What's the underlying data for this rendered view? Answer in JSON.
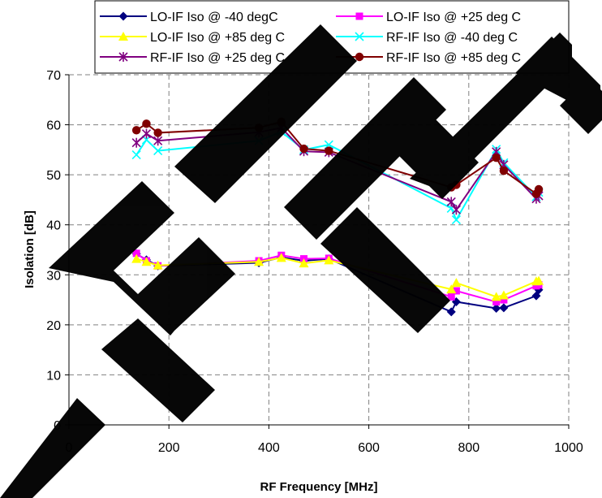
{
  "chart_data": {
    "type": "line",
    "title": "",
    "xlabel": "RF Frequency [MHz]",
    "ylabel": "Isolation [dB]",
    "xlim": [
      0,
      1000
    ],
    "ylim": [
      0,
      70
    ],
    "xticks": [
      0,
      200,
      400,
      600,
      800,
      1000
    ],
    "yticks": [
      0,
      10,
      20,
      30,
      40,
      50,
      60,
      70
    ],
    "grid": true,
    "legend_position": "top",
    "watermark": "DELETE",
    "series": [
      {
        "name": "LO-IF Iso @ -40 degC",
        "color": "#000080",
        "marker": "diamond",
        "points": [
          [
            135,
            34.2
          ],
          [
            155,
            33.0
          ],
          [
            178,
            31.8
          ],
          [
            380,
            32.4
          ],
          [
            425,
            33.5
          ],
          [
            470,
            32.8
          ],
          [
            520,
            33.2
          ],
          [
            765,
            22.6
          ],
          [
            775,
            24.6
          ],
          [
            855,
            23.3
          ],
          [
            870,
            23.4
          ],
          [
            935,
            25.8
          ],
          [
            940,
            27.0
          ]
        ]
      },
      {
        "name": "LO-IF Iso @ +25 deg C",
        "color": "#ff00ff",
        "marker": "square",
        "points": [
          [
            135,
            34.3
          ],
          [
            155,
            32.8
          ],
          [
            178,
            31.8
          ],
          [
            380,
            32.8
          ],
          [
            425,
            33.9
          ],
          [
            470,
            33.2
          ],
          [
            520,
            33.3
          ],
          [
            765,
            25.6
          ],
          [
            775,
            26.8
          ],
          [
            855,
            24.6
          ],
          [
            870,
            25.0
          ],
          [
            935,
            27.8
          ],
          [
            940,
            28.0
          ]
        ]
      },
      {
        "name": "LO-IF Iso @ +85 deg C",
        "color": "#ffff00",
        "marker": "triangle",
        "points": [
          [
            135,
            33.2
          ],
          [
            155,
            32.6
          ],
          [
            178,
            31.9
          ],
          [
            380,
            32.6
          ],
          [
            425,
            33.4
          ],
          [
            470,
            32.3
          ],
          [
            520,
            32.9
          ],
          [
            765,
            27.1
          ],
          [
            775,
            28.4
          ],
          [
            855,
            25.6
          ],
          [
            870,
            25.9
          ],
          [
            935,
            28.7
          ],
          [
            940,
            28.8
          ]
        ]
      },
      {
        "name": "RF-IF Iso @ -40 deg C",
        "color": "#00ffff",
        "marker": "x",
        "points": [
          [
            135,
            54.0
          ],
          [
            155,
            57.0
          ],
          [
            178,
            54.8
          ],
          [
            380,
            56.8
          ],
          [
            425,
            58.6
          ],
          [
            470,
            55.0
          ],
          [
            520,
            56.0
          ],
          [
            765,
            43.3
          ],
          [
            775,
            41.0
          ],
          [
            855,
            55.1
          ],
          [
            870,
            52.4
          ],
          [
            935,
            45.6
          ],
          [
            940,
            46.5
          ]
        ]
      },
      {
        "name": "RF-IF Iso @ +25 deg C",
        "color": "#800080",
        "marker": "star",
        "points": [
          [
            135,
            56.4
          ],
          [
            155,
            58.2
          ],
          [
            178,
            56.8
          ],
          [
            380,
            58.5
          ],
          [
            425,
            59.4
          ],
          [
            470,
            54.7
          ],
          [
            520,
            54.5
          ],
          [
            765,
            44.6
          ],
          [
            775,
            43.0
          ],
          [
            855,
            54.6
          ],
          [
            870,
            52.0
          ],
          [
            935,
            45.2
          ],
          [
            940,
            45.8
          ]
        ]
      },
      {
        "name": "RF-IF Iso @ +85 deg C",
        "color": "#800000",
        "marker": "circle",
        "points": [
          [
            135,
            58.9
          ],
          [
            155,
            60.2
          ],
          [
            178,
            58.4
          ],
          [
            380,
            59.4
          ],
          [
            425,
            60.6
          ],
          [
            470,
            55.2
          ],
          [
            520,
            54.8
          ],
          [
            765,
            47.5
          ],
          [
            775,
            48.0
          ],
          [
            855,
            53.4
          ],
          [
            870,
            50.8
          ],
          [
            935,
            46.2
          ],
          [
            940,
            47.1
          ]
        ]
      }
    ]
  }
}
